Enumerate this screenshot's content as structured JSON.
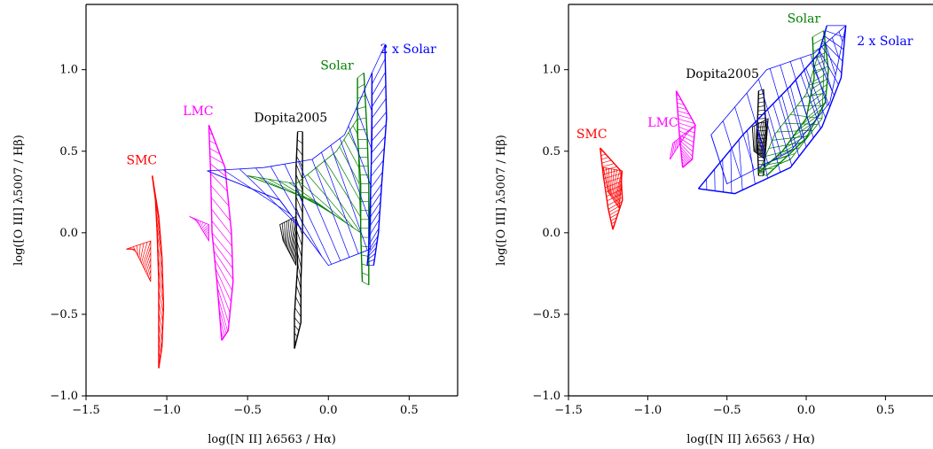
{
  "chart_data": [
    {
      "type": "line",
      "xlabel": "log([N II] λ6563 / Hα)",
      "ylabel": "log([O III] λ5007 / Hβ)",
      "xlim": [
        -1.5,
        0.8
      ],
      "ylim": [
        -1.0,
        1.4
      ],
      "xticks": [
        "−1.5",
        "−1.0",
        "−0.5",
        "0.0",
        "0.5"
      ],
      "xtick_values": [
        -1.5,
        -1.0,
        -0.5,
        0.0,
        0.5
      ],
      "yticks": [
        "−1.0",
        "−0.5",
        "0.0",
        "0.5",
        "1.0"
      ],
      "ytick_values": [
        -1.0,
        -0.5,
        0.0,
        0.5,
        1.0
      ],
      "grid": false,
      "series": [
        {
          "name": "SMC",
          "color": "#ff0000",
          "label_pos": [
            -1.25,
            0.42
          ],
          "left": [
            [
              -1.09,
              0.35
            ],
            [
              -1.07,
              0.2
            ],
            [
              -1.06,
              0.0
            ],
            [
              -1.05,
              -0.3
            ],
            [
              -1.05,
              -0.6
            ],
            [
              -1.05,
              -0.83
            ]
          ],
          "right": [
            [
              -1.09,
              0.35
            ],
            [
              -1.05,
              0.1
            ],
            [
              -1.03,
              -0.15
            ],
            [
              -1.02,
              -0.45
            ],
            [
              -1.03,
              -0.7
            ],
            [
              -1.05,
              -0.83
            ]
          ],
          "fan": [
            [
              -1.25,
              -0.1
            ],
            [
              -1.1,
              -0.05
            ],
            [
              -1.1,
              -0.3
            ],
            [
              -1.2,
              -0.1
            ]
          ]
        },
        {
          "name": "LMC",
          "color": "#ff00ff",
          "label_pos": [
            -0.9,
            0.72
          ],
          "left": [
            [
              -0.74,
              0.66
            ],
            [
              -0.73,
              0.4
            ],
            [
              -0.72,
              0.0
            ],
            [
              -0.69,
              -0.3
            ],
            [
              -0.66,
              -0.66
            ]
          ],
          "right": [
            [
              -0.74,
              0.66
            ],
            [
              -0.64,
              0.4
            ],
            [
              -0.6,
              0.0
            ],
            [
              -0.59,
              -0.3
            ],
            [
              -0.62,
              -0.6
            ],
            [
              -0.66,
              -0.66
            ]
          ],
          "fan": [
            [
              -0.86,
              0.1
            ],
            [
              -0.74,
              0.05
            ],
            [
              -0.74,
              -0.05
            ],
            [
              -0.82,
              0.08
            ]
          ]
        },
        {
          "name": "Dopita2005",
          "color": "#000000",
          "label_pos": [
            -0.46,
            0.68
          ],
          "left": [
            [
              -0.19,
              0.62
            ],
            [
              -0.2,
              0.4
            ],
            [
              -0.2,
              0.1
            ],
            [
              -0.19,
              -0.2
            ],
            [
              -0.21,
              -0.5
            ],
            [
              -0.21,
              -0.71
            ]
          ],
          "right": [
            [
              -0.16,
              0.62
            ],
            [
              -0.16,
              0.3
            ],
            [
              -0.16,
              0.0
            ],
            [
              -0.17,
              -0.3
            ],
            [
              -0.17,
              -0.55
            ],
            [
              -0.21,
              -0.71
            ]
          ],
          "fan": [
            [
              -0.3,
              0.05
            ],
            [
              -0.2,
              0.1
            ],
            [
              -0.2,
              -0.2
            ],
            [
              -0.28,
              -0.05
            ]
          ]
        },
        {
          "name": "Solar",
          "color": "#008000",
          "label_pos": [
            -0.05,
            1.0
          ],
          "left": [
            [
              0.18,
              0.95
            ],
            [
              0.18,
              0.6
            ],
            [
              0.2,
              0.3
            ],
            [
              0.2,
              0.0
            ],
            [
              0.21,
              -0.3
            ]
          ],
          "right": [
            [
              0.22,
              0.98
            ],
            [
              0.24,
              0.6
            ],
            [
              0.25,
              0.3
            ],
            [
              0.25,
              0.0
            ],
            [
              0.25,
              -0.32
            ]
          ],
          "fan": [
            [
              -0.5,
              0.35
            ],
            [
              -0.2,
              0.3
            ],
            [
              0.05,
              0.5
            ],
            [
              0.18,
              0.7
            ],
            [
              0.2,
              0.0
            ],
            [
              -0.1,
              0.2
            ]
          ]
        },
        {
          "name": "2 x Solar",
          "color": "#0000ff",
          "label_pos": [
            0.32,
            1.1
          ],
          "left": [
            [
              0.27,
              0.98
            ],
            [
              0.27,
              0.6
            ],
            [
              0.26,
              0.2
            ],
            [
              0.25,
              -0.1
            ],
            [
              0.24,
              -0.2
            ]
          ],
          "right": [
            [
              0.35,
              1.15
            ],
            [
              0.36,
              0.7
            ],
            [
              0.33,
              0.3
            ],
            [
              0.31,
              0.0
            ],
            [
              0.28,
              -0.2
            ]
          ],
          "fan": [
            [
              -0.75,
              0.38
            ],
            [
              -0.4,
              0.4
            ],
            [
              -0.1,
              0.45
            ],
            [
              0.1,
              0.6
            ],
            [
              0.27,
              0.98
            ],
            [
              0.26,
              -0.1
            ],
            [
              0.0,
              -0.2
            ],
            [
              -0.3,
              0.2
            ]
          ]
        }
      ]
    },
    {
      "type": "line",
      "xlabel": "log([N II] λ6563 / Hα)",
      "ylabel": "log([O III] λ5007 / Hβ)",
      "xlim": [
        -1.5,
        0.8
      ],
      "ylim": [
        -1.0,
        1.4
      ],
      "xticks": [
        "−1.5",
        "−1.0",
        "−0.5",
        "0.0",
        "0.5"
      ],
      "xtick_values": [
        -1.5,
        -1.0,
        -0.5,
        0.0,
        0.5
      ],
      "yticks": [
        "−1.0",
        "−0.5",
        "0.0",
        "0.5",
        "1.0"
      ],
      "ytick_values": [
        -1.0,
        -0.5,
        0.0,
        0.5,
        1.0
      ],
      "grid": false,
      "series": [
        {
          "name": "SMC",
          "color": "#ff0000",
          "label_pos": [
            -1.45,
            0.58
          ],
          "left": [
            [
              -1.3,
              0.52
            ],
            [
              -1.28,
              0.35
            ],
            [
              -1.25,
              0.15
            ],
            [
              -1.22,
              0.02
            ]
          ],
          "right": [
            [
              -1.3,
              0.52
            ],
            [
              -1.17,
              0.38
            ],
            [
              -1.16,
              0.2
            ],
            [
              -1.22,
              0.02
            ]
          ],
          "fan": [
            [
              -1.28,
              0.4
            ],
            [
              -1.16,
              0.38
            ],
            [
              -1.18,
              0.15
            ],
            [
              -1.25,
              0.25
            ]
          ]
        },
        {
          "name": "LMC",
          "color": "#ff00ff",
          "label_pos": [
            -1.0,
            0.65
          ],
          "left": [
            [
              -0.82,
              0.87
            ],
            [
              -0.8,
              0.6
            ],
            [
              -0.78,
              0.4
            ]
          ],
          "right": [
            [
              -0.82,
              0.87
            ],
            [
              -0.7,
              0.66
            ],
            [
              -0.72,
              0.45
            ],
            [
              -0.78,
              0.4
            ]
          ],
          "fan": [
            [
              -0.86,
              0.45
            ],
            [
              -0.76,
              0.6
            ],
            [
              -0.7,
              0.66
            ],
            [
              -0.84,
              0.55
            ]
          ]
        },
        {
          "name": "Dopita2005",
          "color": "#000000",
          "label_pos": [
            -0.76,
            0.95
          ],
          "left": [
            [
              -0.3,
              0.87
            ],
            [
              -0.31,
              0.6
            ],
            [
              -0.3,
              0.35
            ]
          ],
          "right": [
            [
              -0.27,
              0.88
            ],
            [
              -0.25,
              0.6
            ],
            [
              -0.27,
              0.35
            ]
          ],
          "fan": [
            [
              -0.34,
              0.65
            ],
            [
              -0.24,
              0.7
            ],
            [
              -0.26,
              0.45
            ],
            [
              -0.33,
              0.5
            ]
          ]
        },
        {
          "name": "Solar",
          "color": "#008000",
          "label_pos": [
            -0.12,
            1.29
          ],
          "left": [
            [
              0.04,
              1.2
            ],
            [
              0.05,
              0.95
            ],
            [
              0.0,
              0.7
            ],
            [
              -0.15,
              0.5
            ],
            [
              -0.3,
              0.37
            ]
          ],
          "right": [
            [
              0.11,
              1.24
            ],
            [
              0.14,
              1.0
            ],
            [
              0.12,
              0.8
            ],
            [
              0.0,
              0.58
            ],
            [
              -0.25,
              0.35
            ]
          ],
          "fan": [
            [
              -0.3,
              0.37
            ],
            [
              -0.2,
              0.6
            ],
            [
              0.0,
              0.85
            ],
            [
              0.12,
              1.24
            ],
            [
              0.1,
              0.7
            ],
            [
              -0.1,
              0.45
            ]
          ]
        },
        {
          "name": "2 x Solar",
          "color": "#0000ff",
          "label_pos": [
            0.32,
            1.15
          ],
          "left": [
            [
              0.13,
              1.27
            ],
            [
              0.08,
              1.1
            ],
            [
              -0.1,
              0.9
            ],
            [
              -0.4,
              0.6
            ],
            [
              -0.68,
              0.27
            ]
          ],
          "right": [
            [
              0.25,
              1.27
            ],
            [
              0.22,
              0.95
            ],
            [
              0.1,
              0.65
            ],
            [
              -0.1,
              0.4
            ],
            [
              -0.45,
              0.24
            ],
            [
              -0.68,
              0.27
            ]
          ],
          "fan": [
            [
              -0.6,
              0.6
            ],
            [
              -0.25,
              1.0
            ],
            [
              0.05,
              1.1
            ],
            [
              0.25,
              1.27
            ],
            [
              0.15,
              0.8
            ],
            [
              -0.1,
              0.5
            ],
            [
              -0.5,
              0.3
            ]
          ]
        }
      ]
    }
  ]
}
